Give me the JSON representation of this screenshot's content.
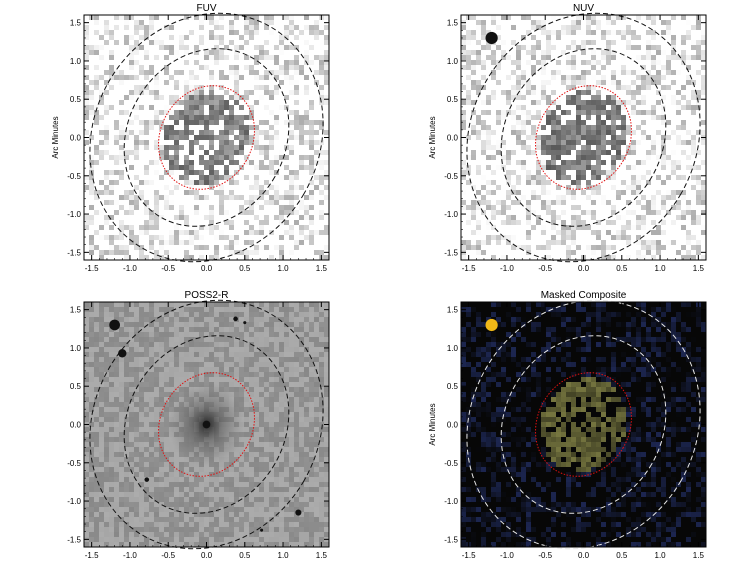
{
  "figure": {
    "panels": [
      {
        "id": "fuv",
        "title": "FUV",
        "ylabel": "Arc Minutes",
        "style": "gray",
        "background": "#ffffff",
        "contour_color": "#111111",
        "aperture_color": "#e01010",
        "noise_color": "#555555",
        "blob_color": "#444444",
        "stars": []
      },
      {
        "id": "nuv",
        "title": "NUV",
        "ylabel": "Arc Minutes",
        "style": "gray",
        "background": "#ffffff",
        "contour_color": "#111111",
        "aperture_color": "#e01010",
        "noise_color": "#555555",
        "blob_color": "#3a3a3a",
        "stars": [
          {
            "x": -1.2,
            "y": 1.3,
            "r": 0.08
          }
        ]
      },
      {
        "id": "poss2r",
        "title": "POSS2-R",
        "ylabel": "",
        "style": "optical",
        "background": "#9a9a9a",
        "contour_color": "#111111",
        "aperture_color": "#e01010",
        "noise_color": "#5c5c5c",
        "blob_color": "#3a3a3a",
        "stars": [
          {
            "x": -1.2,
            "y": 1.3,
            "r": 0.07
          },
          {
            "x": -1.1,
            "y": 0.93,
            "r": 0.055
          },
          {
            "x": 0.38,
            "y": 1.38,
            "r": 0.03
          },
          {
            "x": 0.5,
            "y": 1.33,
            "r": 0.02
          },
          {
            "x": 0.0,
            "y": 0.0,
            "r": 0.05
          },
          {
            "x": -0.78,
            "y": -0.72,
            "r": 0.03
          },
          {
            "x": 1.2,
            "y": -1.15,
            "r": 0.04
          },
          {
            "x": 0.72,
            "y": -1.38,
            "r": 0.02
          }
        ]
      },
      {
        "id": "composite",
        "title": "Masked Composite",
        "ylabel": "Arc Minutes",
        "style": "composite",
        "background": "#070707",
        "contour_color": "#e8e8e8",
        "aperture_color": "#e01010",
        "noise_color": "#2c3d86",
        "blob_color": "#8a8a4a",
        "stars": [
          {
            "x": -1.2,
            "y": 1.3,
            "r": 0.08,
            "color": "#f0b818"
          }
        ]
      }
    ],
    "axes": {
      "xlim": [
        -1.6,
        1.6
      ],
      "ylim": [
        -1.6,
        1.6
      ],
      "ticks": [
        -1.5,
        -1.0,
        -0.5,
        0.0,
        0.5,
        1.0,
        1.5
      ],
      "tick_labels": [
        "-1.5",
        "-1.0",
        "-0.5",
        "0.0",
        "0.5",
        "1.0",
        "1.5"
      ]
    },
    "ellipses": {
      "aperture": {
        "cx": 0.0,
        "cy": 0.0,
        "a": 0.6,
        "b": 0.7,
        "angle_deg": -30
      },
      "inner": {
        "cx": 0.0,
        "cy": 0.0,
        "a": 1.03,
        "b": 1.2,
        "angle_deg": -30
      },
      "outer": {
        "cx": 0.0,
        "cy": 0.0,
        "a": 1.47,
        "b": 1.67,
        "angle_deg": -30
      }
    }
  }
}
